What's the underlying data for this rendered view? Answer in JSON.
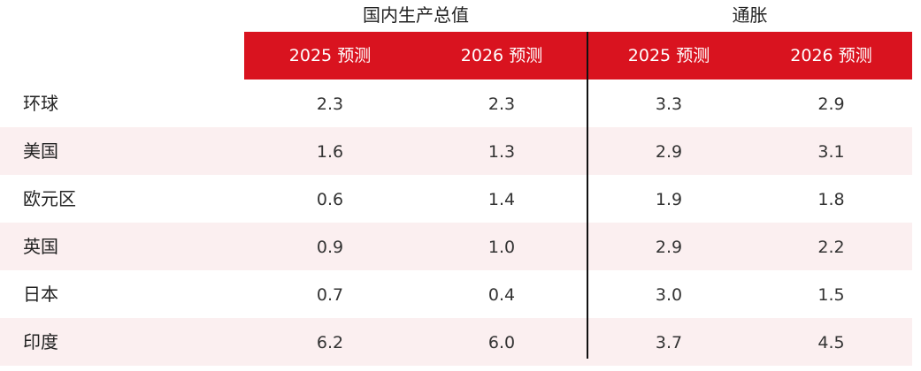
{
  "chart_data": {
    "type": "table",
    "groups": [
      {
        "name": "国内生产总值",
        "columns": [
          "2025 预测",
          "2026 预测"
        ]
      },
      {
        "name": "通胀",
        "columns": [
          "2025 预测",
          "2026 预测"
        ]
      }
    ],
    "rows": [
      {
        "label": "环球",
        "values": [
          "2.3",
          "2.3",
          "3.3",
          "2.9"
        ]
      },
      {
        "label": "美国",
        "values": [
          "1.6",
          "1.3",
          "2.9",
          "3.1"
        ]
      },
      {
        "label": "欧元区",
        "values": [
          "0.6",
          "1.4",
          "1.9",
          "1.8"
        ]
      },
      {
        "label": "英国",
        "values": [
          "0.9",
          "1.0",
          "2.9",
          "2.2"
        ]
      },
      {
        "label": "日本",
        "values": [
          "0.7",
          "0.4",
          "3.0",
          "1.5"
        ]
      },
      {
        "label": "印度",
        "values": [
          "6.2",
          "6.0",
          "3.7",
          "4.5"
        ]
      }
    ]
  },
  "colors": {
    "header": "#d9131f",
    "row_shade": "#fbeff0",
    "divider": "#111111"
  }
}
